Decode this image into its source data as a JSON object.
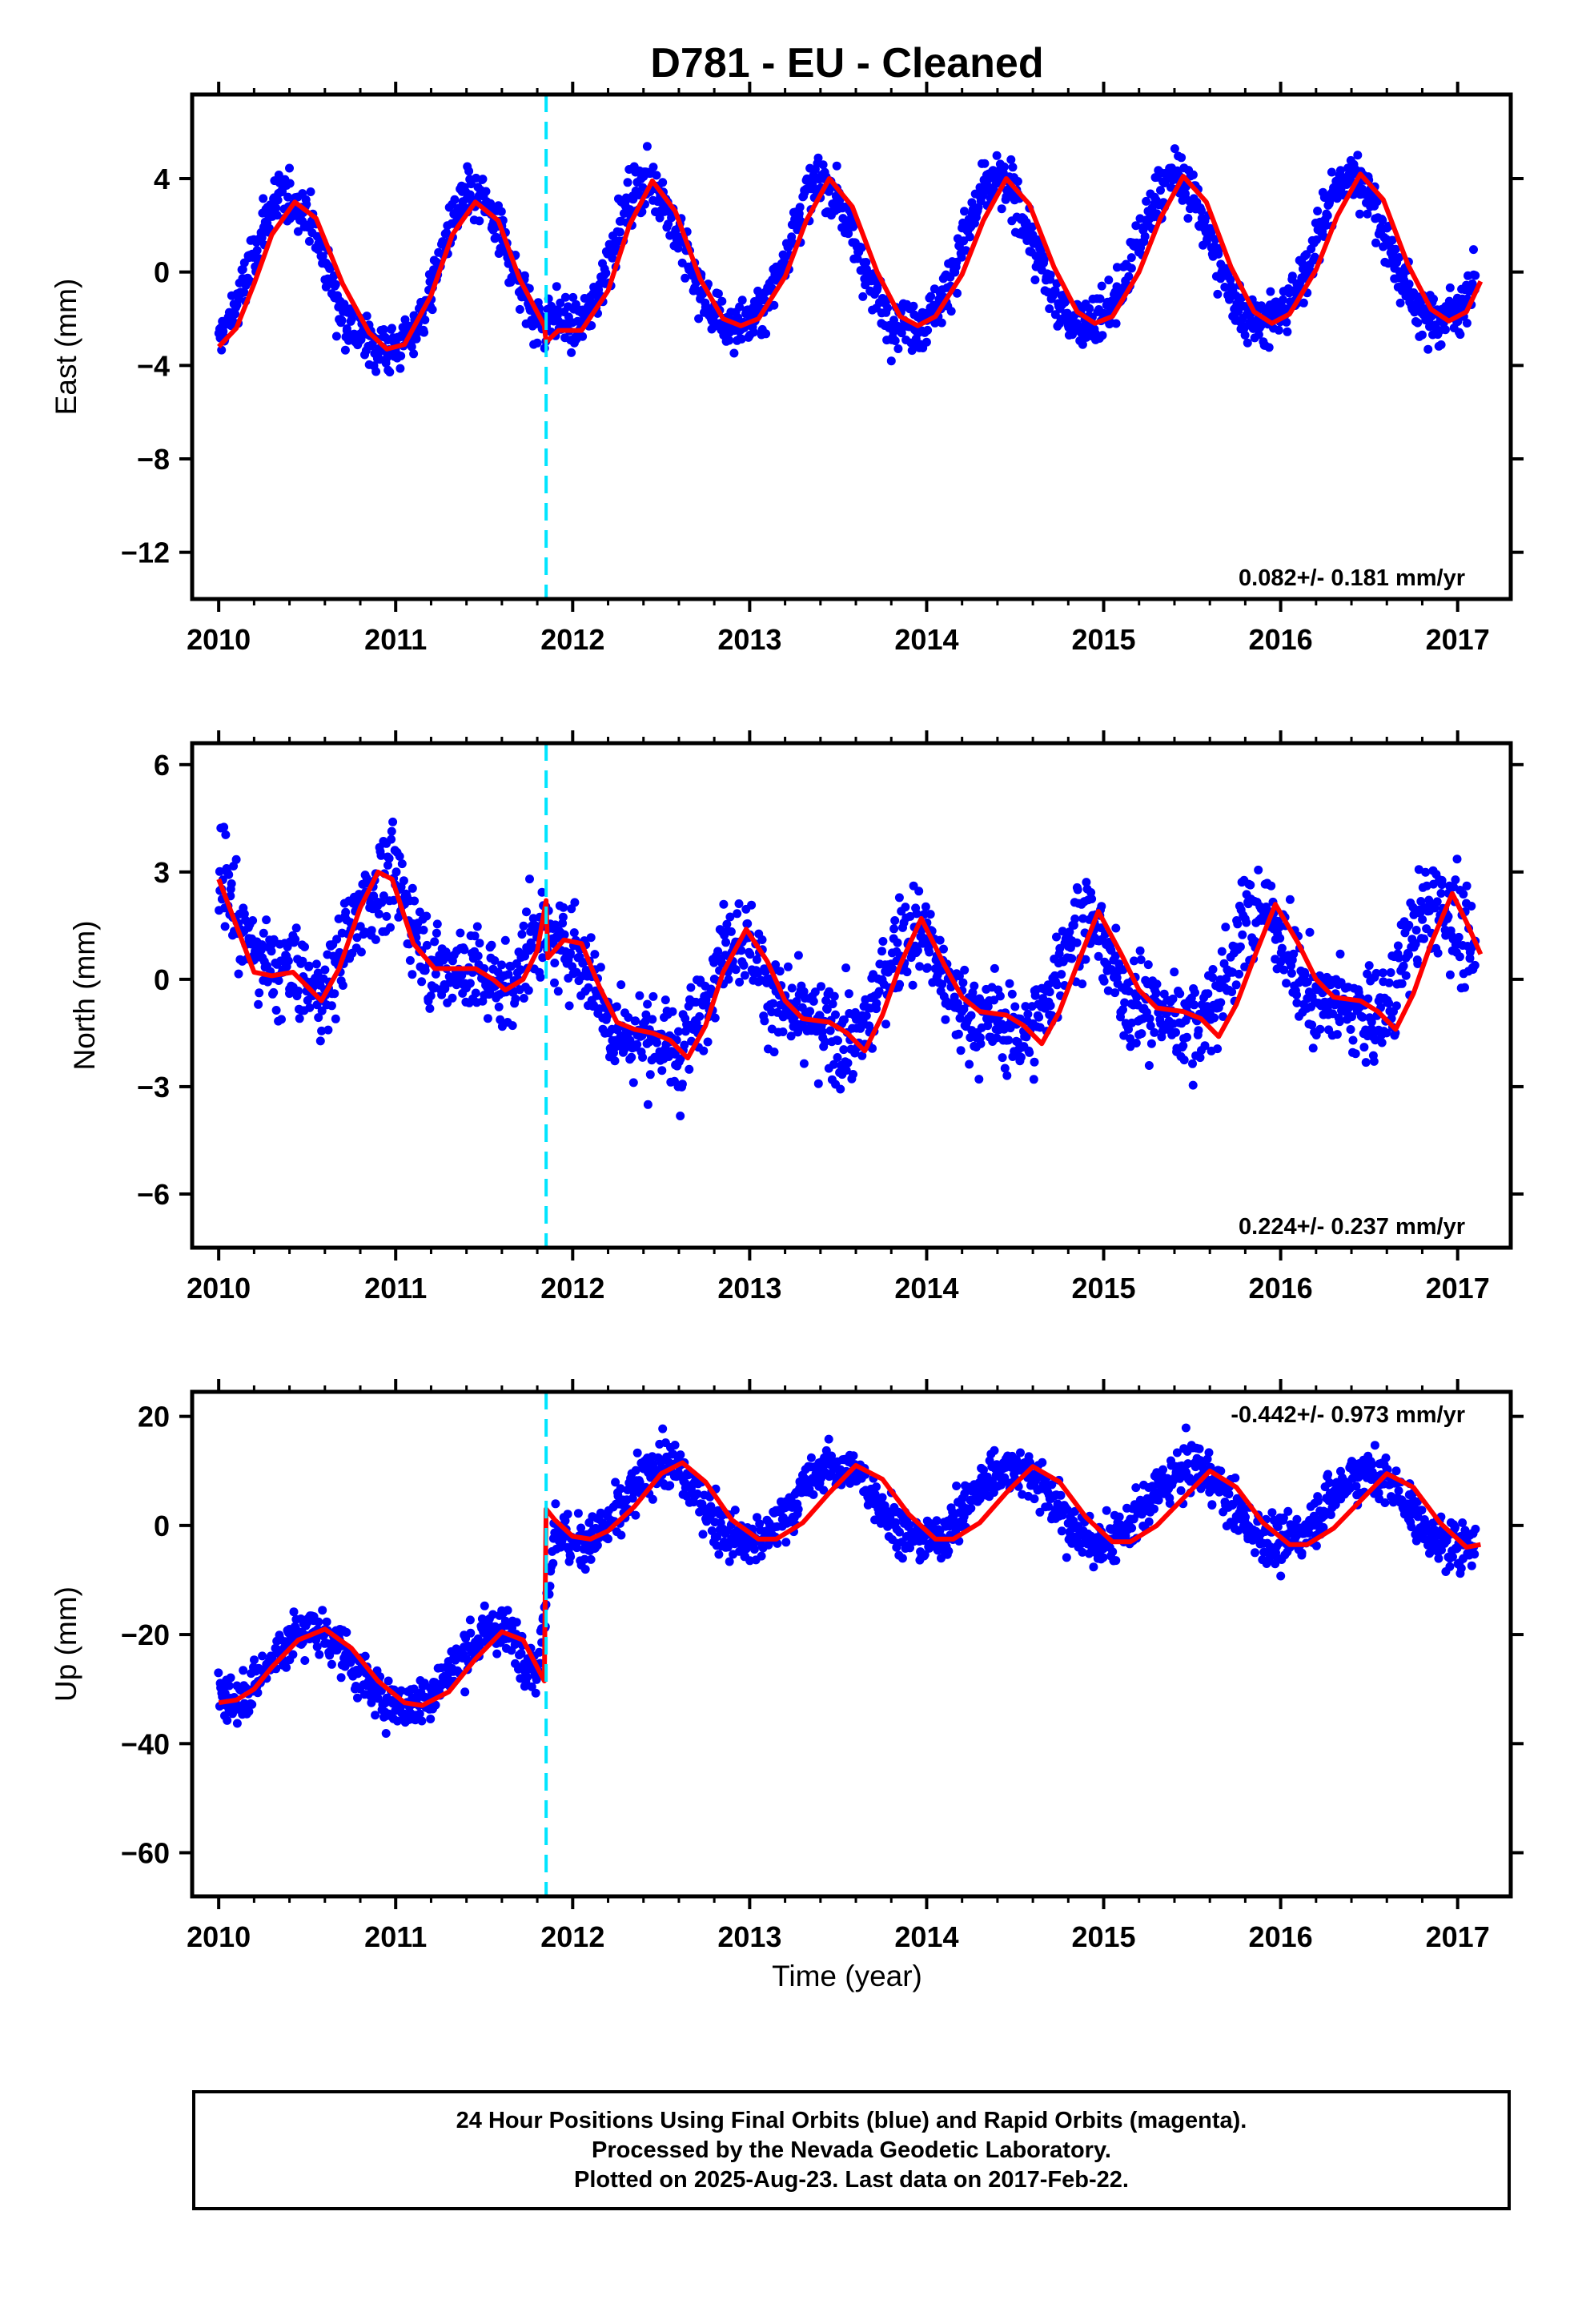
{
  "title": "D781  - EU - Cleaned",
  "xlabel": "Time (year)",
  "footer": {
    "line1": "24 Hour Positions Using Final Orbits (blue) and Rapid Orbits (magenta).",
    "line2": "Processed by the Nevada Geodetic Laboratory.",
    "line3": "Plotted on 2025-Aug-23. Last data on 2017-Feb-22."
  },
  "colors": {
    "data": "#0000ff",
    "model": "#ff0000",
    "break": "#00e5ff",
    "frame": "#000000"
  },
  "chart_data": [
    {
      "type": "scatter",
      "title": "D781  - EU - Cleaned",
      "xlabel": "",
      "ylabel": "East (mm)",
      "xlim": [
        2009.85,
        2017.3
      ],
      "ylim": [
        -14.0,
        7.6
      ],
      "xticks": [
        2010,
        2011,
        2012,
        2013,
        2014,
        2015,
        2016,
        2017
      ],
      "yticks": [
        4,
        0,
        -4,
        -8,
        -12
      ],
      "ytick_labels": [
        "4",
        "0",
        "−4",
        "−8",
        "−12"
      ],
      "rate_text": "0.082+/- 0.181 mm/yr",
      "equipment_change": 2011.85,
      "series": [
        {
          "role": "observed",
          "x": [
            2010.0,
            2010.1,
            2010.2,
            2010.3,
            2010.4,
            2010.5,
            2010.6,
            2010.7,
            2010.8,
            2010.9,
            2011.0,
            2011.1,
            2011.2,
            2011.3,
            2011.4,
            2011.5,
            2011.6,
            2011.7,
            2011.8,
            2011.9,
            2012.0,
            2012.1,
            2012.2,
            2012.3,
            2012.4,
            2012.5,
            2012.6,
            2012.7,
            2012.8,
            2012.9,
            2013.0,
            2013.1,
            2013.2,
            2013.3,
            2013.4,
            2013.5,
            2013.6,
            2013.7,
            2013.8,
            2013.9,
            2014.0,
            2014.1,
            2014.2,
            2014.3,
            2014.4,
            2014.5,
            2014.6,
            2014.7,
            2014.8,
            2014.9,
            2015.0,
            2015.1,
            2015.2,
            2015.3,
            2015.4,
            2015.5,
            2015.6,
            2015.7,
            2015.8,
            2015.9,
            2016.0,
            2016.1,
            2016.2,
            2016.3,
            2016.4,
            2016.5,
            2016.6,
            2016.7,
            2016.8,
            2016.9,
            2017.0,
            2017.1
          ],
          "y": [
            -3.0,
            -1.5,
            0.8,
            2.8,
            3.2,
            2.6,
            0.5,
            -1.8,
            -2.8,
            -3.2,
            -3.3,
            -2.6,
            -0.8,
            1.8,
            3.2,
            3.0,
            1.5,
            -0.5,
            -2.2,
            -1.8,
            -2.4,
            -1.8,
            0.5,
            2.8,
            4.0,
            3.4,
            1.5,
            -0.5,
            -1.9,
            -2.3,
            -2.2,
            -1.3,
            0.8,
            3.0,
            4.0,
            3.2,
            1.2,
            -0.8,
            -2.0,
            -2.3,
            -2.0,
            -1.0,
            1.2,
            3.2,
            4.0,
            3.2,
            1.2,
            -0.8,
            -2.0,
            -2.2,
            -1.9,
            -0.8,
            1.3,
            3.3,
            4.2,
            3.4,
            1.4,
            -0.6,
            -1.8,
            -2.0,
            -1.8,
            -0.8,
            1.4,
            3.4,
            4.2,
            3.5,
            1.4,
            -0.6,
            -1.8,
            -2.0,
            -1.6,
            -0.4
          ]
        },
        {
          "role": "model",
          "x": [
            2010.0,
            2010.1,
            2010.2,
            2010.3,
            2010.43,
            2010.55,
            2010.7,
            2010.85,
            2010.95,
            2011.05,
            2011.2,
            2011.32,
            2011.45,
            2011.58,
            2011.7,
            2011.84,
            2011.85,
            2011.92,
            2012.05,
            2012.2,
            2012.32,
            2012.45,
            2012.58,
            2012.72,
            2012.85,
            2012.95,
            2013.05,
            2013.2,
            2013.32,
            2013.45,
            2013.58,
            2013.72,
            2013.85,
            2013.95,
            2014.05,
            2014.2,
            2014.32,
            2014.45,
            2014.58,
            2014.72,
            2014.85,
            2014.95,
            2015.05,
            2015.2,
            2015.32,
            2015.45,
            2015.58,
            2015.72,
            2015.85,
            2015.95,
            2016.05,
            2016.2,
            2016.32,
            2016.45,
            2016.58,
            2016.72,
            2016.85,
            2016.95,
            2017.05,
            2017.13
          ],
          "y": [
            -3.2,
            -2.4,
            -0.5,
            1.6,
            3.0,
            2.3,
            -0.5,
            -2.6,
            -3.3,
            -3.1,
            -1.0,
            1.6,
            3.0,
            2.2,
            -0.3,
            -2.3,
            -3.0,
            -2.5,
            -2.5,
            -0.8,
            2.0,
            3.9,
            2.6,
            -0.3,
            -2.0,
            -2.3,
            -2.0,
            -0.2,
            2.2,
            4.0,
            2.8,
            0.0,
            -1.9,
            -2.3,
            -1.9,
            -0.1,
            2.2,
            4.0,
            2.9,
            0.2,
            -1.7,
            -2.2,
            -1.9,
            0.0,
            2.3,
            4.1,
            3.0,
            0.2,
            -1.7,
            -2.2,
            -1.8,
            0.1,
            2.4,
            4.2,
            3.1,
            0.3,
            -1.6,
            -2.1,
            -1.7,
            -0.4
          ]
        }
      ]
    },
    {
      "type": "scatter",
      "xlabel": "",
      "ylabel": "North (mm)",
      "xlim": [
        2009.85,
        2017.3
      ],
      "ylim": [
        -7.5,
        6.6
      ],
      "xticks": [
        2010,
        2011,
        2012,
        2013,
        2014,
        2015,
        2016,
        2017
      ],
      "yticks": [
        6,
        3,
        0,
        -3,
        -6
      ],
      "ytick_labels": [
        "6",
        "3",
        "0",
        "−3",
        "−6"
      ],
      "rate_text": "0.224+/- 0.237 mm/yr",
      "equipment_change": 2011.85,
      "series": [
        {
          "role": "observed",
          "x": [
            2010.0,
            2010.1,
            2010.2,
            2010.3,
            2010.4,
            2010.5,
            2010.6,
            2010.7,
            2010.8,
            2010.9,
            2011.0,
            2011.1,
            2011.2,
            2011.3,
            2011.4,
            2011.5,
            2011.6,
            2011.7,
            2011.8,
            2011.9,
            2012.0,
            2012.1,
            2012.2,
            2012.3,
            2012.4,
            2012.5,
            2012.6,
            2012.7,
            2012.8,
            2012.9,
            2013.0,
            2013.1,
            2013.2,
            2013.3,
            2013.4,
            2013.5,
            2013.6,
            2013.7,
            2013.8,
            2013.9,
            2014.0,
            2014.1,
            2014.2,
            2014.3,
            2014.4,
            2014.5,
            2014.6,
            2014.7,
            2014.8,
            2014.9,
            2015.0,
            2015.1,
            2015.2,
            2015.3,
            2015.4,
            2015.5,
            2015.6,
            2015.7,
            2015.8,
            2015.9,
            2016.0,
            2016.1,
            2016.2,
            2016.3,
            2016.4,
            2016.5,
            2016.6,
            2016.7,
            2016.8,
            2016.9,
            2017.0,
            2017.1
          ],
          "y": [
            3.2,
            1.8,
            0.8,
            0.2,
            0.3,
            -0.2,
            -0.4,
            0.9,
            2.0,
            2.6,
            2.8,
            1.5,
            0.5,
            0.2,
            0.4,
            0.0,
            -0.3,
            0.2,
            1.6,
            0.8,
            1.0,
            0.2,
            -1.2,
            -1.5,
            -1.6,
            -1.8,
            -2.0,
            -1.2,
            0.4,
            1.3,
            1.0,
            -0.2,
            -1.0,
            -1.2,
            -1.4,
            -1.6,
            -1.8,
            -0.8,
            0.6,
            1.4,
            1.2,
            -0.2,
            -0.9,
            -1.1,
            -1.2,
            -1.5,
            -1.4,
            -0.4,
            1.2,
            1.7,
            1.0,
            -0.3,
            -0.8,
            -0.9,
            -1.0,
            -1.3,
            -1.0,
            0.2,
            1.6,
            2.0,
            1.3,
            0.0,
            -0.6,
            -0.7,
            -0.8,
            -1.1,
            -0.8,
            0.6,
            1.8,
            2.2,
            1.5,
            0.5
          ]
        },
        {
          "role": "model",
          "x": [
            2010.0,
            2010.1,
            2010.2,
            2010.3,
            2010.42,
            2010.5,
            2010.58,
            2010.68,
            2010.8,
            2010.9,
            2010.98,
            2011.1,
            2011.22,
            2011.35,
            2011.45,
            2011.55,
            2011.62,
            2011.72,
            2011.8,
            2011.85,
            2011.86,
            2011.95,
            2012.05,
            2012.15,
            2012.25,
            2012.35,
            2012.45,
            2012.55,
            2012.65,
            2012.75,
            2012.85,
            2012.98,
            2013.1,
            2013.2,
            2013.3,
            2013.45,
            2013.55,
            2013.65,
            2013.75,
            2013.85,
            2013.97,
            2014.1,
            2014.2,
            2014.3,
            2014.45,
            2014.55,
            2014.65,
            2014.75,
            2014.85,
            2014.97,
            2015.1,
            2015.2,
            2015.3,
            2015.45,
            2015.55,
            2015.65,
            2015.75,
            2015.85,
            2015.97,
            2016.1,
            2016.2,
            2016.3,
            2016.45,
            2016.55,
            2016.65,
            2016.75,
            2016.85,
            2016.97,
            2017.05,
            2017.13
          ],
          "y": [
            2.8,
            1.5,
            0.2,
            0.1,
            0.2,
            -0.2,
            -0.6,
            0.3,
            2.0,
            3.0,
            2.8,
            1.0,
            0.3,
            0.3,
            0.3,
            0.0,
            -0.3,
            0.0,
            0.8,
            2.2,
            0.6,
            1.1,
            1.0,
            -0.2,
            -1.2,
            -1.4,
            -1.5,
            -1.7,
            -2.2,
            -1.3,
            0.2,
            1.4,
            0.5,
            -0.6,
            -1.1,
            -1.2,
            -1.5,
            -2.0,
            -1.0,
            0.4,
            1.7,
            0.4,
            -0.5,
            -0.9,
            -1.0,
            -1.3,
            -1.8,
            -0.9,
            0.4,
            1.9,
            0.7,
            -0.3,
            -0.8,
            -0.9,
            -1.1,
            -1.6,
            -0.7,
            0.6,
            2.1,
            1.0,
            0.0,
            -0.5,
            -0.6,
            -0.9,
            -1.4,
            -0.4,
            1.0,
            2.4,
            1.6,
            0.7
          ]
        }
      ]
    },
    {
      "type": "scatter",
      "xlabel": "Time (year)",
      "ylabel": "Up (mm)",
      "xlim": [
        2009.85,
        2017.3
      ],
      "ylim": [
        -68.0,
        24.5
      ],
      "xticks": [
        2010,
        2011,
        2012,
        2013,
        2014,
        2015,
        2016,
        2017
      ],
      "yticks": [
        20,
        0,
        -20,
        -40,
        -60
      ],
      "ytick_labels": [
        "20",
        "0",
        "−20",
        "−40",
        "−60"
      ],
      "rate_text": "-0.442+/- 0.973 mm/yr",
      "equipment_change": 2011.85,
      "series": [
        {
          "role": "observed",
          "x": [
            2010.0,
            2010.1,
            2010.2,
            2010.3,
            2010.4,
            2010.5,
            2010.6,
            2010.7,
            2010.8,
            2010.9,
            2011.0,
            2011.1,
            2011.2,
            2011.3,
            2011.4,
            2011.5,
            2011.6,
            2011.7,
            2011.8,
            2011.9,
            2012.0,
            2012.1,
            2012.2,
            2012.3,
            2012.4,
            2012.5,
            2012.6,
            2012.7,
            2012.8,
            2012.9,
            2013.0,
            2013.1,
            2013.2,
            2013.3,
            2013.4,
            2013.5,
            2013.6,
            2013.7,
            2013.8,
            2013.9,
            2014.0,
            2014.1,
            2014.2,
            2014.3,
            2014.4,
            2014.5,
            2014.6,
            2014.7,
            2014.8,
            2014.9,
            2015.0,
            2015.1,
            2015.2,
            2015.3,
            2015.4,
            2015.5,
            2015.6,
            2015.7,
            2015.8,
            2015.9,
            2016.0,
            2016.1,
            2016.2,
            2016.3,
            2016.4,
            2016.5,
            2016.6,
            2016.7,
            2016.8,
            2016.9,
            2017.0,
            2017.1
          ],
          "y": [
            -30.0,
            -32.0,
            -29.0,
            -25.0,
            -21.0,
            -19.0,
            -19.5,
            -23.0,
            -27.5,
            -31.0,
            -33.0,
            -33.0,
            -31.0,
            -27.0,
            -23.0,
            -20.0,
            -19.0,
            -22.0,
            -27.0,
            0.0,
            -4.0,
            -2.5,
            0.0,
            4.0,
            9.0,
            11.0,
            10.0,
            6.0,
            1.0,
            -2.0,
            -3.5,
            -2.0,
            2.0,
            6.0,
            10.0,
            11.0,
            9.5,
            6.0,
            1.0,
            -2.0,
            -3.0,
            -1.5,
            2.5,
            7.0,
            10.0,
            11.0,
            9.0,
            5.0,
            0.5,
            -2.5,
            -3.5,
            -2.0,
            2.0,
            6.0,
            9.5,
            10.5,
            9.0,
            5.0,
            0.5,
            -2.5,
            -3.5,
            -2.0,
            1.5,
            5.5,
            9.0,
            10.0,
            8.5,
            4.5,
            0.0,
            -3.0,
            -4.0,
            -3.0
          ]
        },
        {
          "role": "model",
          "x": [
            2010.0,
            2010.1,
            2010.2,
            2010.3,
            2010.45,
            2010.6,
            2010.75,
            2010.9,
            2011.05,
            2011.15,
            2011.3,
            2011.45,
            2011.6,
            2011.72,
            2011.84,
            2011.85,
            2011.9,
            2012.0,
            2012.1,
            2012.2,
            2012.35,
            2012.5,
            2012.62,
            2012.75,
            2012.9,
            2013.05,
            2013.15,
            2013.3,
            2013.45,
            2013.6,
            2013.75,
            2013.9,
            2014.05,
            2014.15,
            2014.3,
            2014.45,
            2014.6,
            2014.75,
            2014.9,
            2015.05,
            2015.15,
            2015.3,
            2015.45,
            2015.6,
            2015.75,
            2015.9,
            2016.05,
            2016.15,
            2016.3,
            2016.45,
            2016.6,
            2016.75,
            2016.9,
            2017.05,
            2017.13
          ],
          "y": [
            -32.5,
            -32.0,
            -30.0,
            -26.0,
            -21.0,
            -19.0,
            -22.5,
            -28.5,
            -32.5,
            -33.0,
            -30.5,
            -24.5,
            -19.5,
            -21.0,
            -28.5,
            3.0,
            1.0,
            -2.0,
            -2.5,
            -1.0,
            3.5,
            9.5,
            11.5,
            8.0,
            1.0,
            -2.5,
            -2.5,
            0.5,
            6.0,
            11.0,
            8.5,
            2.0,
            -2.5,
            -2.5,
            0.5,
            6.0,
            10.8,
            8.0,
            1.5,
            -3.0,
            -3.0,
            0.0,
            5.0,
            10.0,
            7.0,
            0.5,
            -3.5,
            -3.5,
            -0.5,
            4.5,
            9.5,
            7.0,
            0.5,
            -4.0,
            -3.5
          ]
        }
      ]
    }
  ]
}
